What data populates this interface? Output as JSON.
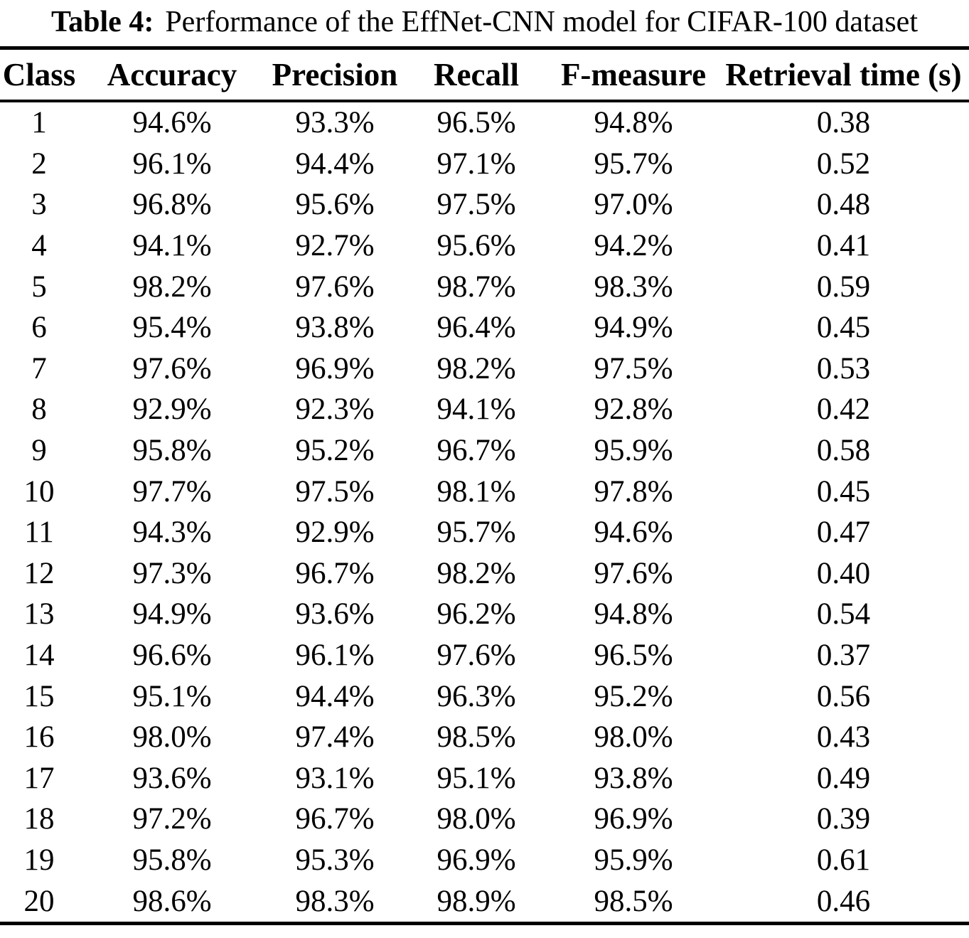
{
  "caption": {
    "label": "Table 4:",
    "text": "Performance of the EffNet-CNN model for CIFAR-100 dataset"
  },
  "table": {
    "columns": [
      "Class",
      "Accuracy",
      "Precision",
      "Recall",
      "F-measure",
      "Retrieval time (s)"
    ],
    "rows": [
      [
        "1",
        "94.6%",
        "93.3%",
        "96.5%",
        "94.8%",
        "0.38"
      ],
      [
        "2",
        "96.1%",
        "94.4%",
        "97.1%",
        "95.7%",
        "0.52"
      ],
      [
        "3",
        "96.8%",
        "95.6%",
        "97.5%",
        "97.0%",
        "0.48"
      ],
      [
        "4",
        "94.1%",
        "92.7%",
        "95.6%",
        "94.2%",
        "0.41"
      ],
      [
        "5",
        "98.2%",
        "97.6%",
        "98.7%",
        "98.3%",
        "0.59"
      ],
      [
        "6",
        "95.4%",
        "93.8%",
        "96.4%",
        "94.9%",
        "0.45"
      ],
      [
        "7",
        "97.6%",
        "96.9%",
        "98.2%",
        "97.5%",
        "0.53"
      ],
      [
        "8",
        "92.9%",
        "92.3%",
        "94.1%",
        "92.8%",
        "0.42"
      ],
      [
        "9",
        "95.8%",
        "95.2%",
        "96.7%",
        "95.9%",
        "0.58"
      ],
      [
        "10",
        "97.7%",
        "97.5%",
        "98.1%",
        "97.8%",
        "0.45"
      ],
      [
        "11",
        "94.3%",
        "92.9%",
        "95.7%",
        "94.6%",
        "0.47"
      ],
      [
        "12",
        "97.3%",
        "96.7%",
        "98.2%",
        "97.6%",
        "0.40"
      ],
      [
        "13",
        "94.9%",
        "93.6%",
        "96.2%",
        "94.8%",
        "0.54"
      ],
      [
        "14",
        "96.6%",
        "96.1%",
        "97.6%",
        "96.5%",
        "0.37"
      ],
      [
        "15",
        "95.1%",
        "94.4%",
        "96.3%",
        "95.2%",
        "0.56"
      ],
      [
        "16",
        "98.0%",
        "97.4%",
        "98.5%",
        "98.0%",
        "0.43"
      ],
      [
        "17",
        "93.6%",
        "93.1%",
        "95.1%",
        "93.8%",
        "0.49"
      ],
      [
        "18",
        "97.2%",
        "96.7%",
        "98.0%",
        "96.9%",
        "0.39"
      ],
      [
        "19",
        "95.8%",
        "95.3%",
        "96.9%",
        "95.9%",
        "0.61"
      ],
      [
        "20",
        "98.6%",
        "98.3%",
        "98.9%",
        "98.5%",
        "0.46"
      ]
    ]
  },
  "colors": {
    "text": "#000000",
    "background": "#ffffff",
    "rule": "#000000"
  }
}
